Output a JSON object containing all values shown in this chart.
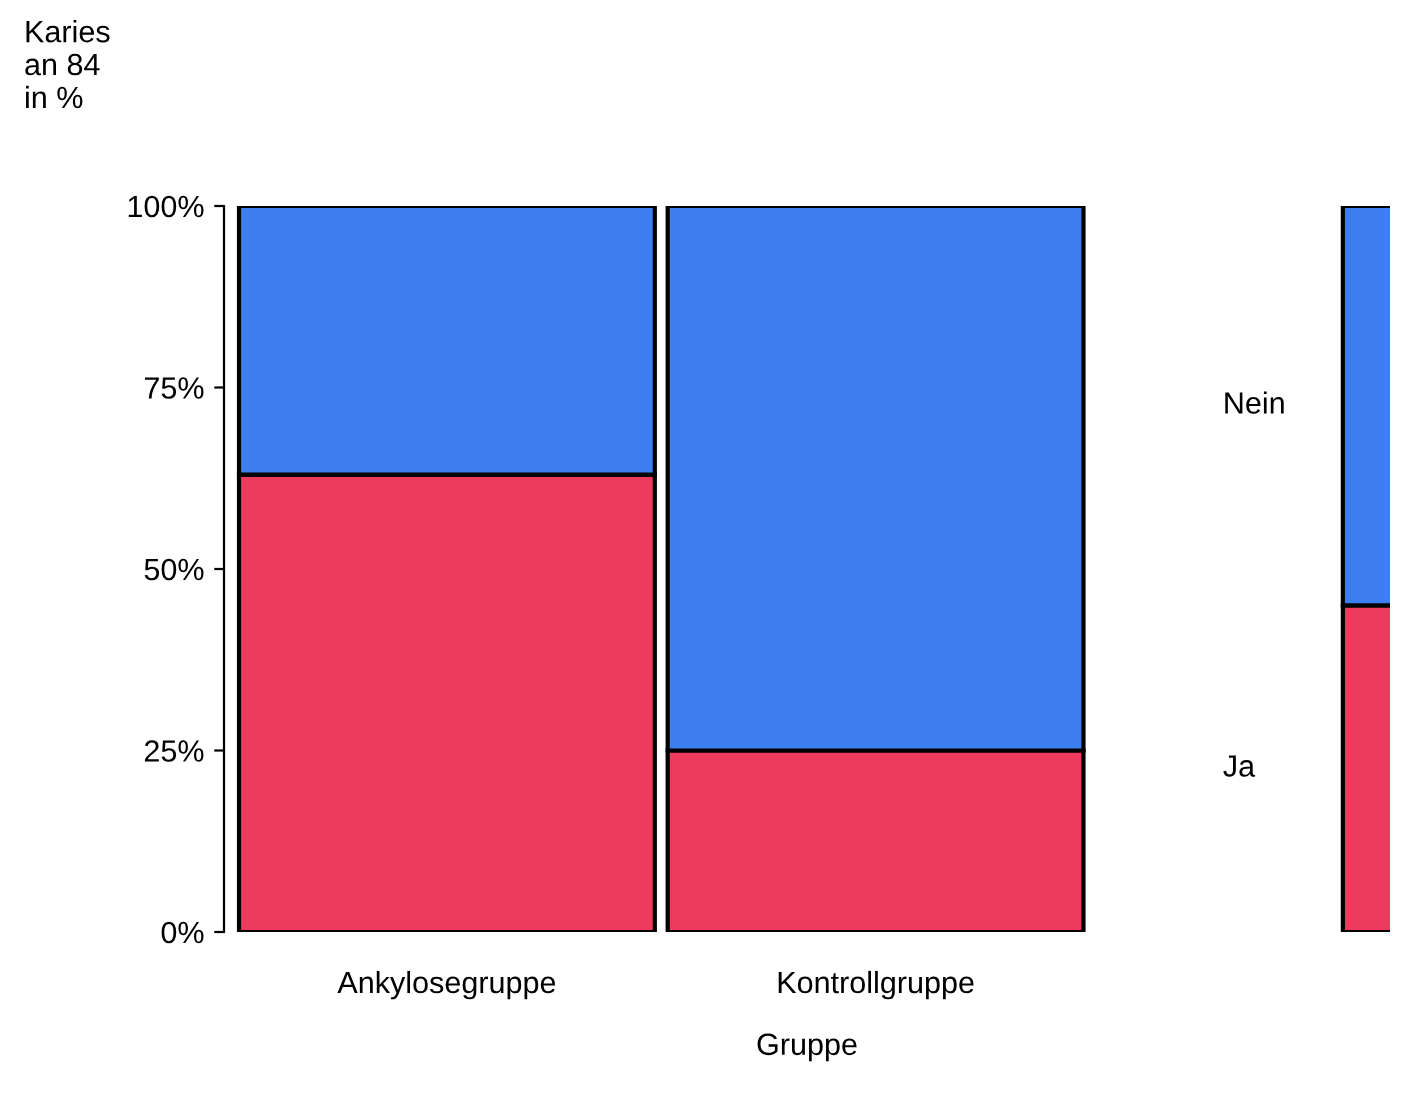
{
  "chart_data": {
    "type": "bar",
    "stacked": true,
    "ylabel": "Karies\nan 84\nin %",
    "xlabel": "Gruppe",
    "categories": [
      "Ankylosegruppe",
      "Kontrollgruppe",
      null
    ],
    "series": [
      {
        "name": "Ja",
        "color": "#ee3a5c",
        "values": [
          63,
          25,
          45
        ]
      },
      {
        "name": "Nein",
        "color": "#3d7ef0",
        "values": [
          37,
          75,
          55
        ]
      }
    ],
    "ylim": [
      0,
      100
    ],
    "yticks": [
      {
        "value": 0,
        "label": "0%"
      },
      {
        "value": 25,
        "label": "25%"
      },
      {
        "value": 50,
        "label": "50%"
      },
      {
        "value": 75,
        "label": "75%"
      },
      {
        "value": 100,
        "label": "100%"
      }
    ],
    "grid": false,
    "legend": false
  }
}
